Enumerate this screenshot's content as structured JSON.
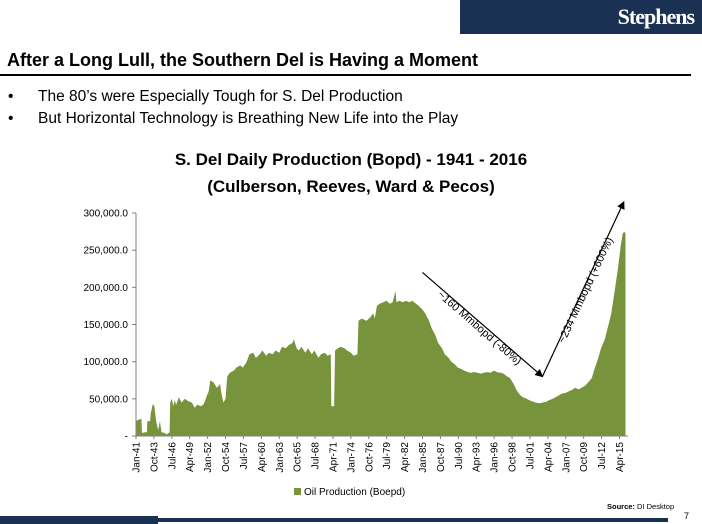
{
  "brand": {
    "logo_text": "Stephens",
    "color": "#1b3154"
  },
  "slide": {
    "title": "After a Long Lull, the Southern Del is Having a Moment",
    "bullets": [
      "The 80’s were Especially Tough for S. Del Production",
      "But Horizontal Technology is Breathing New Life into the Play"
    ],
    "bullet_symbol": "•",
    "source_label": "Source:",
    "source_value": "DI Desktop",
    "page_number": "7"
  },
  "chart_data": {
    "type": "area",
    "title": "S. Del Daily Production (Bopd) - 1941 - 2016",
    "subtitle": "(Culberson, Reeves, Ward & Pecos)",
    "series": [
      {
        "name": "Oil Production (Boepd)",
        "color": "#77933c",
        "points": [
          [
            "1941-01",
            20000
          ],
          [
            "1941-06",
            22000
          ],
          [
            "1941-11",
            23000
          ],
          [
            "1941-12",
            4000
          ],
          [
            "1942-06",
            5000
          ],
          [
            "1942-09",
            5000
          ],
          [
            "1942-10",
            20000
          ],
          [
            "1943-03",
            20000
          ],
          [
            "1943-04",
            30000
          ],
          [
            "1943-08",
            43000
          ],
          [
            "1943-11",
            40000
          ],
          [
            "1944-02",
            20000
          ],
          [
            "1944-06",
            8000
          ],
          [
            "1944-09",
            20000
          ],
          [
            "1944-12",
            5000
          ],
          [
            "1945-06",
            4000
          ],
          [
            "1945-09",
            2000
          ],
          [
            "1946-03",
            5000
          ],
          [
            "1946-04",
            45000
          ],
          [
            "1946-07",
            50000
          ],
          [
            "1946-10",
            40000
          ],
          [
            "1946-12",
            48000
          ],
          [
            "1947-03",
            42000
          ],
          [
            "1947-08",
            52000
          ],
          [
            "1948-01",
            45000
          ],
          [
            "1948-07",
            50000
          ],
          [
            "1949-01",
            47000
          ],
          [
            "1949-08",
            45000
          ],
          [
            "1950-01",
            38000
          ],
          [
            "1950-06",
            42000
          ],
          [
            "1951-01",
            40000
          ],
          [
            "1951-06",
            43000
          ],
          [
            "1951-12",
            55000
          ],
          [
            "1952-03",
            60000
          ],
          [
            "1952-06",
            75000
          ],
          [
            "1952-12",
            72000
          ],
          [
            "1953-06",
            65000
          ],
          [
            "1953-12",
            70000
          ],
          [
            "1954-03",
            55000
          ],
          [
            "1954-06",
            45000
          ],
          [
            "1954-10",
            50000
          ],
          [
            "1955-01",
            80000
          ],
          [
            "1955-06",
            85000
          ],
          [
            "1956-01",
            88000
          ],
          [
            "1956-06",
            92000
          ],
          [
            "1957-01",
            95000
          ],
          [
            "1957-06",
            92000
          ],
          [
            "1958-01",
            100000
          ],
          [
            "1958-06",
            110000
          ],
          [
            "1959-01",
            112000
          ],
          [
            "1959-06",
            105000
          ],
          [
            "1960-01",
            110000
          ],
          [
            "1960-06",
            115000
          ],
          [
            "1961-01",
            108000
          ],
          [
            "1961-06",
            112000
          ],
          [
            "1962-01",
            110000
          ],
          [
            "1962-06",
            115000
          ],
          [
            "1963-01",
            112000
          ],
          [
            "1963-06",
            120000
          ],
          [
            "1964-01",
            118000
          ],
          [
            "1964-06",
            122000
          ],
          [
            "1965-01",
            125000
          ],
          [
            "1965-04",
            130000
          ],
          [
            "1965-09",
            118000
          ],
          [
            "1966-01",
            115000
          ],
          [
            "1966-06",
            120000
          ],
          [
            "1967-01",
            112000
          ],
          [
            "1967-06",
            118000
          ],
          [
            "1968-01",
            110000
          ],
          [
            "1968-06",
            115000
          ],
          [
            "1969-01",
            105000
          ],
          [
            "1969-06",
            110000
          ],
          [
            "1970-01",
            112000
          ],
          [
            "1970-06",
            108000
          ],
          [
            "1970-12",
            110000
          ],
          [
            "1971-01",
            40000
          ],
          [
            "1971-06",
            40000
          ],
          [
            "1971-08",
            115000
          ],
          [
            "1972-01",
            118000
          ],
          [
            "1972-06",
            120000
          ],
          [
            "1973-01",
            118000
          ],
          [
            "1973-06",
            115000
          ],
          [
            "1974-01",
            112000
          ],
          [
            "1974-06",
            108000
          ],
          [
            "1975-01",
            110000
          ],
          [
            "1975-03",
            155000
          ],
          [
            "1975-09",
            158000
          ],
          [
            "1976-06",
            155000
          ],
          [
            "1977-01",
            160000
          ],
          [
            "1977-06",
            165000
          ],
          [
            "1977-09",
            158000
          ],
          [
            "1978-01",
            175000
          ],
          [
            "1978-06",
            178000
          ],
          [
            "1979-01",
            180000
          ],
          [
            "1979-06",
            182000
          ],
          [
            "1980-01",
            178000
          ],
          [
            "1980-06",
            180000
          ],
          [
            "1980-11",
            195000
          ],
          [
            "1981-01",
            180000
          ],
          [
            "1981-06",
            182000
          ],
          [
            "1982-01",
            180000
          ],
          [
            "1982-06",
            182000
          ],
          [
            "1983-01",
            180000
          ],
          [
            "1983-06",
            182000
          ],
          [
            "1984-01",
            178000
          ],
          [
            "1984-06",
            175000
          ],
          [
            "1985-01",
            170000
          ],
          [
            "1985-06",
            165000
          ],
          [
            "1986-01",
            155000
          ],
          [
            "1986-06",
            145000
          ],
          [
            "1987-01",
            135000
          ],
          [
            "1987-06",
            125000
          ],
          [
            "1988-01",
            118000
          ],
          [
            "1988-06",
            110000
          ],
          [
            "1989-01",
            105000
          ],
          [
            "1989-06",
            100000
          ],
          [
            "1990-01",
            96000
          ],
          [
            "1990-06",
            92000
          ],
          [
            "1991-01",
            90000
          ],
          [
            "1991-06",
            88000
          ],
          [
            "1992-01",
            86000
          ],
          [
            "1992-06",
            85000
          ],
          [
            "1993-01",
            86000
          ],
          [
            "1993-06",
            85000
          ],
          [
            "1994-01",
            84000
          ],
          [
            "1994-06",
            85000
          ],
          [
            "1995-01",
            86000
          ],
          [
            "1995-06",
            85000
          ],
          [
            "1996-01",
            88000
          ],
          [
            "1996-06",
            86000
          ],
          [
            "1997-01",
            85000
          ],
          [
            "1997-06",
            84000
          ],
          [
            "1998-01",
            80000
          ],
          [
            "1998-06",
            78000
          ],
          [
            "1999-01",
            70000
          ],
          [
            "1999-06",
            62000
          ],
          [
            "2000-01",
            55000
          ],
          [
            "2000-06",
            52000
          ],
          [
            "2001-01",
            50000
          ],
          [
            "2001-06",
            48000
          ],
          [
            "2002-01",
            46000
          ],
          [
            "2002-06",
            45000
          ],
          [
            "2003-01",
            44000
          ],
          [
            "2003-06",
            45000
          ],
          [
            "2004-01",
            46000
          ],
          [
            "2004-06",
            48000
          ],
          [
            "2005-01",
            50000
          ],
          [
            "2005-06",
            52000
          ],
          [
            "2006-01",
            55000
          ],
          [
            "2006-06",
            57000
          ],
          [
            "2007-01",
            58000
          ],
          [
            "2007-06",
            60000
          ],
          [
            "2008-01",
            62000
          ],
          [
            "2008-06",
            65000
          ],
          [
            "2009-01",
            63000
          ],
          [
            "2009-06",
            65000
          ],
          [
            "2010-01",
            68000
          ],
          [
            "2010-06",
            72000
          ],
          [
            "2011-01",
            78000
          ],
          [
            "2011-06",
            90000
          ],
          [
            "2012-01",
            105000
          ],
          [
            "2012-06",
            118000
          ],
          [
            "2013-01",
            130000
          ],
          [
            "2013-06",
            145000
          ],
          [
            "2014-01",
            165000
          ],
          [
            "2014-06",
            190000
          ],
          [
            "2015-01",
            225000
          ],
          [
            "2015-06",
            255000
          ],
          [
            "2015-10",
            272000
          ],
          [
            "2016-01",
            275000
          ],
          [
            "2016-03",
            272000
          ]
        ]
      }
    ],
    "x_tick_labels": [
      "Jan-41",
      "Oct-43",
      "Jul-46",
      "Apr-49",
      "Jan-52",
      "Oct-54",
      "Jul-57",
      "Apr-60",
      "Jan-63",
      "Oct-65",
      "Jul-68",
      "Apr-71",
      "Jan-74",
      "Oct-76",
      "Jul-79",
      "Apr-82",
      "Jan-85",
      "Oct-87",
      "Jul-90",
      "Apr-93",
      "Jan-96",
      "Oct-98",
      "Jul-01",
      "Apr-04",
      "Jan-07",
      "Oct-09",
      "Jul-12",
      "Apr-15"
    ],
    "y_ticks": [
      0,
      50000,
      100000,
      150000,
      200000,
      250000,
      300000
    ],
    "y_tick_labels": [
      "-",
      "50,000.0",
      "100,000.0",
      "150,000.0",
      "200,000.0",
      "250,000.0",
      "300,000.0"
    ],
    "ylim": [
      0,
      300000
    ],
    "grid": false,
    "legend": {
      "position": "bottom",
      "label": "Oil Production (Boepd)"
    },
    "annotations": [
      {
        "text": "~160 Mmbopd (-80%)",
        "from": [
          "1985-01",
          220000
        ],
        "to": [
          "2003-06",
          80000
        ]
      },
      {
        "text": "~234 Mmbopd (+600%)",
        "from": [
          "2003-06",
          80000
        ],
        "to": [
          "2015-12",
          315000
        ]
      }
    ]
  }
}
